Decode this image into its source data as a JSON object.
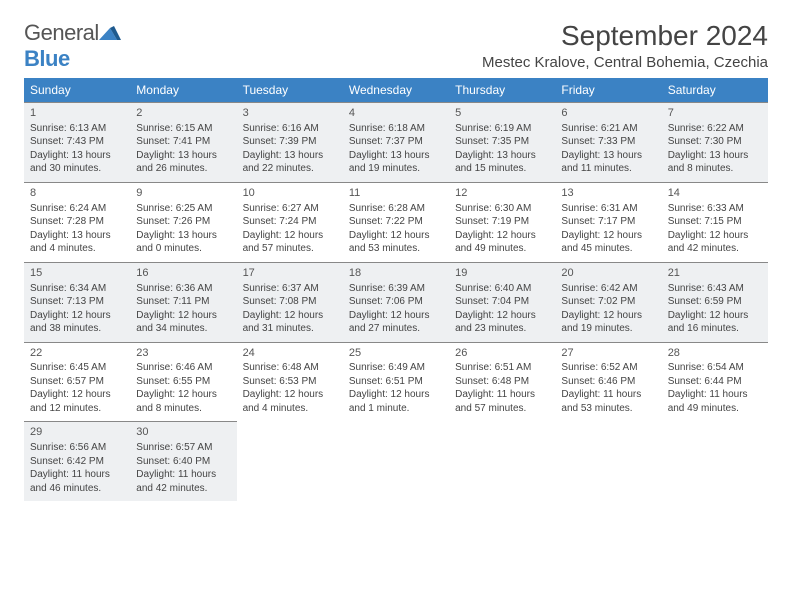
{
  "logo": {
    "text1": "General",
    "text2": "Blue"
  },
  "title": "September 2024",
  "location": "Mestec Kralove, Central Bohemia, Czechia",
  "colors": {
    "header_bg": "#3b82c4",
    "header_fg": "#ffffff",
    "border": "#888888",
    "text": "#444444",
    "shaded_bg": "#eef0f2"
  },
  "fonts": {
    "title_size": 28,
    "location_size": 15,
    "th_size": 12,
    "cell_size": 10
  },
  "weekdays": [
    "Sunday",
    "Monday",
    "Tuesday",
    "Wednesday",
    "Thursday",
    "Friday",
    "Saturday"
  ],
  "days": [
    {
      "n": 1,
      "sunrise": "6:13 AM",
      "sunset": "7:43 PM",
      "daylight": "13 hours and 30 minutes."
    },
    {
      "n": 2,
      "sunrise": "6:15 AM",
      "sunset": "7:41 PM",
      "daylight": "13 hours and 26 minutes."
    },
    {
      "n": 3,
      "sunrise": "6:16 AM",
      "sunset": "7:39 PM",
      "daylight": "13 hours and 22 minutes."
    },
    {
      "n": 4,
      "sunrise": "6:18 AM",
      "sunset": "7:37 PM",
      "daylight": "13 hours and 19 minutes."
    },
    {
      "n": 5,
      "sunrise": "6:19 AM",
      "sunset": "7:35 PM",
      "daylight": "13 hours and 15 minutes."
    },
    {
      "n": 6,
      "sunrise": "6:21 AM",
      "sunset": "7:33 PM",
      "daylight": "13 hours and 11 minutes."
    },
    {
      "n": 7,
      "sunrise": "6:22 AM",
      "sunset": "7:30 PM",
      "daylight": "13 hours and 8 minutes."
    },
    {
      "n": 8,
      "sunrise": "6:24 AM",
      "sunset": "7:28 PM",
      "daylight": "13 hours and 4 minutes."
    },
    {
      "n": 9,
      "sunrise": "6:25 AM",
      "sunset": "7:26 PM",
      "daylight": "13 hours and 0 minutes."
    },
    {
      "n": 10,
      "sunrise": "6:27 AM",
      "sunset": "7:24 PM",
      "daylight": "12 hours and 57 minutes."
    },
    {
      "n": 11,
      "sunrise": "6:28 AM",
      "sunset": "7:22 PM",
      "daylight": "12 hours and 53 minutes."
    },
    {
      "n": 12,
      "sunrise": "6:30 AM",
      "sunset": "7:19 PM",
      "daylight": "12 hours and 49 minutes."
    },
    {
      "n": 13,
      "sunrise": "6:31 AM",
      "sunset": "7:17 PM",
      "daylight": "12 hours and 45 minutes."
    },
    {
      "n": 14,
      "sunrise": "6:33 AM",
      "sunset": "7:15 PM",
      "daylight": "12 hours and 42 minutes."
    },
    {
      "n": 15,
      "sunrise": "6:34 AM",
      "sunset": "7:13 PM",
      "daylight": "12 hours and 38 minutes."
    },
    {
      "n": 16,
      "sunrise": "6:36 AM",
      "sunset": "7:11 PM",
      "daylight": "12 hours and 34 minutes."
    },
    {
      "n": 17,
      "sunrise": "6:37 AM",
      "sunset": "7:08 PM",
      "daylight": "12 hours and 31 minutes."
    },
    {
      "n": 18,
      "sunrise": "6:39 AM",
      "sunset": "7:06 PM",
      "daylight": "12 hours and 27 minutes."
    },
    {
      "n": 19,
      "sunrise": "6:40 AM",
      "sunset": "7:04 PM",
      "daylight": "12 hours and 23 minutes."
    },
    {
      "n": 20,
      "sunrise": "6:42 AM",
      "sunset": "7:02 PM",
      "daylight": "12 hours and 19 minutes."
    },
    {
      "n": 21,
      "sunrise": "6:43 AM",
      "sunset": "6:59 PM",
      "daylight": "12 hours and 16 minutes."
    },
    {
      "n": 22,
      "sunrise": "6:45 AM",
      "sunset": "6:57 PM",
      "daylight": "12 hours and 12 minutes."
    },
    {
      "n": 23,
      "sunrise": "6:46 AM",
      "sunset": "6:55 PM",
      "daylight": "12 hours and 8 minutes."
    },
    {
      "n": 24,
      "sunrise": "6:48 AM",
      "sunset": "6:53 PM",
      "daylight": "12 hours and 4 minutes."
    },
    {
      "n": 25,
      "sunrise": "6:49 AM",
      "sunset": "6:51 PM",
      "daylight": "12 hours and 1 minute."
    },
    {
      "n": 26,
      "sunrise": "6:51 AM",
      "sunset": "6:48 PM",
      "daylight": "11 hours and 57 minutes."
    },
    {
      "n": 27,
      "sunrise": "6:52 AM",
      "sunset": "6:46 PM",
      "daylight": "11 hours and 53 minutes."
    },
    {
      "n": 28,
      "sunrise": "6:54 AM",
      "sunset": "6:44 PM",
      "daylight": "11 hours and 49 minutes."
    },
    {
      "n": 29,
      "sunrise": "6:56 AM",
      "sunset": "6:42 PM",
      "daylight": "11 hours and 46 minutes."
    },
    {
      "n": 30,
      "sunrise": "6:57 AM",
      "sunset": "6:40 PM",
      "daylight": "11 hours and 42 minutes."
    }
  ],
  "shaded_weeks": [
    0,
    2,
    4
  ],
  "labels": {
    "sunrise": "Sunrise:",
    "sunset": "Sunset:",
    "daylight": "Daylight:"
  }
}
